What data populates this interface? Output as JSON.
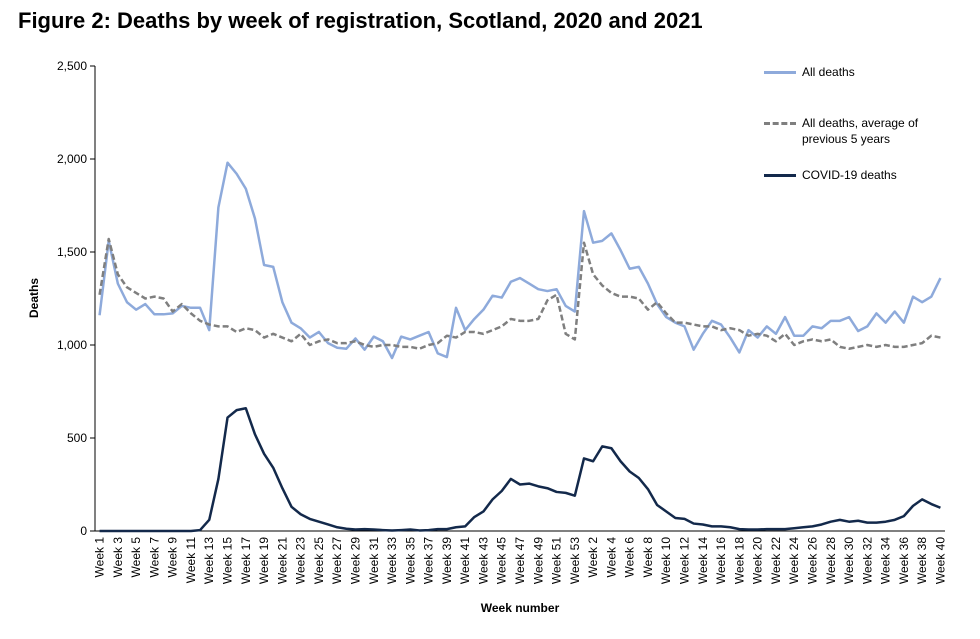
{
  "chart_data": {
    "type": "line",
    "title": "Figure 2: Deaths by week of registration, Scotland, 2020 and 2021",
    "x_label": "Week number",
    "y_label": "Deaths",
    "categories": [
      "Week 1",
      null,
      "Week 3",
      null,
      "Week 5",
      null,
      "Week 7",
      null,
      "Week 9",
      null,
      "Week 11",
      null,
      "Week 13",
      null,
      "Week 15",
      null,
      "Week 17",
      null,
      "Week 19",
      null,
      "Week 21",
      null,
      "Week 23",
      null,
      "Week 25",
      null,
      "Week 27",
      null,
      "Week 29",
      null,
      "Week 31",
      null,
      "Week 33",
      null,
      "Week 35",
      null,
      "Week 37",
      null,
      "Week 39",
      null,
      "Week 41",
      null,
      "Week 43",
      null,
      "Week 45",
      null,
      "Week 47",
      null,
      "Week 49",
      null,
      "Week 51",
      null,
      "Week 53",
      null,
      "Week 2",
      null,
      "Week 4",
      null,
      "Week 6",
      null,
      "Week 8",
      null,
      "Week 10",
      null,
      "Week 12",
      null,
      "Week 14",
      null,
      "Week 16",
      null,
      "Week 18",
      null,
      "Week 20",
      null,
      "Week 22",
      null,
      "Week 24",
      null,
      "Week 26",
      null,
      "Week 28",
      null,
      "Week 30",
      null,
      "Week 32",
      null,
      "Week 34",
      null,
      "Week 36",
      null,
      "Week 38",
      null,
      "Week 40"
    ],
    "series": [
      {
        "name": "All deaths",
        "color": "#8eaadb",
        "dash": false,
        "values": [
          1160,
          1560,
          1330,
          1230,
          1190,
          1220,
          1165,
          1165,
          1170,
          1210,
          1200,
          1200,
          1080,
          1740,
          1980,
          1920,
          1840,
          1680,
          1430,
          1420,
          1230,
          1120,
          1090,
          1040,
          1070,
          1010,
          985,
          980,
          1035,
          975,
          1045,
          1020,
          930,
          1045,
          1030,
          1050,
          1070,
          955,
          935,
          1200,
          1080,
          1140,
          1190,
          1265,
          1255,
          1340,
          1360,
          1330,
          1300,
          1290,
          1300,
          1210,
          1180,
          1720,
          1550,
          1560,
          1600,
          1510,
          1410,
          1420,
          1330,
          1220,
          1150,
          1120,
          1100,
          975,
          1060,
          1130,
          1110,
          1040,
          960,
          1080,
          1040,
          1100,
          1060,
          1150,
          1050,
          1050,
          1100,
          1090,
          1130,
          1130,
          1150,
          1075,
          1100,
          1170,
          1120,
          1180,
          1120,
          1260,
          1230,
          1260,
          1360
        ]
      },
      {
        "name": "All deaths, average of previous 5 years",
        "color": "#7f7f7f",
        "dash": true,
        "values": [
          1270,
          1570,
          1380,
          1310,
          1280,
          1250,
          1260,
          1250,
          1180,
          1220,
          1170,
          1130,
          1110,
          1100,
          1100,
          1070,
          1090,
          1080,
          1040,
          1060,
          1040,
          1020,
          1060,
          1000,
          1020,
          1030,
          1010,
          1010,
          1020,
          1000,
          990,
          1000,
          1000,
          990,
          990,
          980,
          1000,
          1010,
          1050,
          1040,
          1070,
          1070,
          1060,
          1080,
          1100,
          1140,
          1130,
          1130,
          1140,
          1240,
          1270,
          1060,
          1030,
          1550,
          1380,
          1320,
          1280,
          1260,
          1260,
          1250,
          1190,
          1230,
          1170,
          1120,
          1120,
          1110,
          1100,
          1100,
          1080,
          1090,
          1080,
          1050,
          1060,
          1050,
          1020,
          1060,
          1000,
          1020,
          1030,
          1020,
          1030,
          990,
          980,
          990,
          1000,
          990,
          1000,
          990,
          990,
          1000,
          1010,
          1050,
          1040
        ]
      },
      {
        "name": "COVID-19 deaths",
        "color": "#13294b",
        "dash": false,
        "values": [
          0,
          0,
          0,
          0,
          0,
          0,
          0,
          0,
          0,
          0,
          0,
          5,
          60,
          280,
          610,
          650,
          660,
          520,
          415,
          340,
          230,
          130,
          90,
          65,
          50,
          35,
          20,
          12,
          8,
          10,
          8,
          5,
          3,
          5,
          8,
          3,
          5,
          10,
          10,
          20,
          25,
          75,
          105,
          170,
          215,
          280,
          250,
          255,
          240,
          230,
          210,
          205,
          190,
          390,
          375,
          455,
          445,
          375,
          320,
          285,
          225,
          140,
          105,
          70,
          65,
          40,
          35,
          25,
          25,
          20,
          10,
          8,
          8,
          10,
          10,
          10,
          15,
          20,
          25,
          35,
          50,
          60,
          50,
          55,
          45,
          45,
          50,
          60,
          80,
          135,
          170,
          145,
          125
        ]
      }
    ],
    "ylim": [
      0,
      2500
    ],
    "yticks": [
      0,
      500,
      {
        "value": 1000,
        "label": "1,000"
      },
      {
        "value": 1500,
        "label": "1,500"
      },
      {
        "value": 2000,
        "label": "2,000"
      },
      {
        "value": 2500,
        "label": "2,500"
      }
    ],
    "grid": false
  }
}
